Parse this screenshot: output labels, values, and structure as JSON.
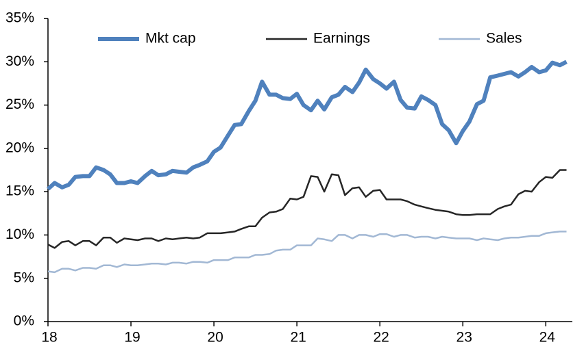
{
  "chart_data": {
    "type": "line",
    "x": [
      18,
      18.08,
      18.17,
      18.25,
      18.33,
      18.42,
      18.5,
      18.58,
      18.67,
      18.75,
      18.83,
      18.92,
      19,
      19.08,
      19.17,
      19.25,
      19.33,
      19.42,
      19.5,
      19.58,
      19.67,
      19.75,
      19.83,
      19.92,
      20,
      20.08,
      20.17,
      20.25,
      20.33,
      20.42,
      20.5,
      20.58,
      20.67,
      20.75,
      20.83,
      20.92,
      21,
      21.08,
      21.17,
      21.25,
      21.33,
      21.42,
      21.5,
      21.58,
      21.67,
      21.75,
      21.83,
      21.92,
      22,
      22.08,
      22.17,
      22.25,
      22.33,
      22.42,
      22.5,
      22.58,
      22.67,
      22.75,
      22.83,
      22.92,
      23,
      23.08,
      23.17,
      23.25,
      23.33,
      23.42,
      23.5,
      23.58,
      23.67,
      23.75,
      23.83,
      23.92,
      24,
      24.08,
      24.17,
      24.25
    ],
    "series": [
      {
        "name": "Mkt cap",
        "color": "#4f81bd",
        "width": 6,
        "values": [
          15.3,
          16.0,
          15.5,
          15.8,
          16.7,
          16.8,
          16.8,
          17.8,
          17.5,
          17.0,
          16.0,
          16.0,
          16.2,
          16.0,
          16.8,
          17.4,
          16.9,
          17.0,
          17.4,
          17.3,
          17.2,
          17.8,
          18.1,
          18.5,
          19.6,
          20.1,
          21.5,
          22.7,
          22.8,
          24.3,
          25.5,
          27.7,
          26.2,
          26.2,
          25.8,
          25.7,
          26.3,
          25.0,
          24.4,
          25.5,
          24.5,
          25.9,
          26.2,
          27.1,
          26.5,
          27.6,
          29.1,
          28.0,
          27.5,
          26.9,
          27.7,
          25.6,
          24.7,
          24.6,
          26.0,
          25.6,
          25.0,
          22.8,
          22.1,
          20.6,
          22.0,
          23.1,
          25.1,
          25.5,
          28.2,
          28.4,
          28.6,
          28.8,
          28.3,
          28.8,
          29.4,
          28.8,
          29.0,
          29.9,
          29.6,
          30.0
        ]
      },
      {
        "name": "Earnings",
        "color": "#262626",
        "width": 2.5,
        "values": [
          8.9,
          8.5,
          9.2,
          9.3,
          8.8,
          9.3,
          9.3,
          8.8,
          9.7,
          9.7,
          9.1,
          9.6,
          9.5,
          9.4,
          9.6,
          9.6,
          9.3,
          9.6,
          9.5,
          9.6,
          9.7,
          9.6,
          9.7,
          10.2,
          10.2,
          10.2,
          10.3,
          10.4,
          10.7,
          11.0,
          11.0,
          12.0,
          12.6,
          12.7,
          13.0,
          14.2,
          14.1,
          14.4,
          16.8,
          16.7,
          15.0,
          17.0,
          16.9,
          14.6,
          15.4,
          15.5,
          14.4,
          15.1,
          15.2,
          14.1,
          14.1,
          14.1,
          13.9,
          13.5,
          13.3,
          13.1,
          12.9,
          12.8,
          12.7,
          12.4,
          12.3,
          12.3,
          12.4,
          12.4,
          12.4,
          13.0,
          13.3,
          13.5,
          14.7,
          15.1,
          15.0,
          16.1,
          16.7,
          16.6,
          17.5,
          17.5
        ]
      },
      {
        "name": "Sales",
        "color": "#a2b8d4",
        "width": 2.5,
        "values": [
          5.8,
          5.7,
          6.1,
          6.1,
          5.9,
          6.2,
          6.2,
          6.1,
          6.5,
          6.5,
          6.3,
          6.6,
          6.5,
          6.5,
          6.6,
          6.7,
          6.7,
          6.6,
          6.8,
          6.8,
          6.7,
          6.9,
          6.9,
          6.8,
          7.1,
          7.1,
          7.1,
          7.4,
          7.4,
          7.4,
          7.7,
          7.7,
          7.8,
          8.2,
          8.3,
          8.3,
          8.8,
          8.8,
          8.8,
          9.6,
          9.5,
          9.3,
          10.0,
          10.0,
          9.6,
          10.0,
          10.0,
          9.8,
          10.1,
          10.1,
          9.8,
          10.0,
          10.0,
          9.7,
          9.8,
          9.8,
          9.6,
          9.8,
          9.7,
          9.6,
          9.6,
          9.6,
          9.4,
          9.6,
          9.5,
          9.4,
          9.6,
          9.7,
          9.7,
          9.8,
          9.9,
          9.9,
          10.2,
          10.3,
          10.4,
          10.4
        ]
      }
    ],
    "xlim": [
      18,
      24.32
    ],
    "xticks": [
      18,
      19,
      20,
      21,
      22,
      23,
      24
    ],
    "ylim": [
      0,
      35
    ],
    "yticks": [
      {
        "value": 0,
        "label": "0%"
      },
      {
        "value": 5,
        "label": "5%"
      },
      {
        "value": 10,
        "label": "10%"
      },
      {
        "value": 15,
        "label": "15%"
      },
      {
        "value": 20,
        "label": "20%"
      },
      {
        "value": 25,
        "label": "25%"
      },
      {
        "value": 30,
        "label": "30%"
      },
      {
        "value": 35,
        "label": "35%"
      }
    ],
    "grid": false,
    "legend": "top"
  }
}
